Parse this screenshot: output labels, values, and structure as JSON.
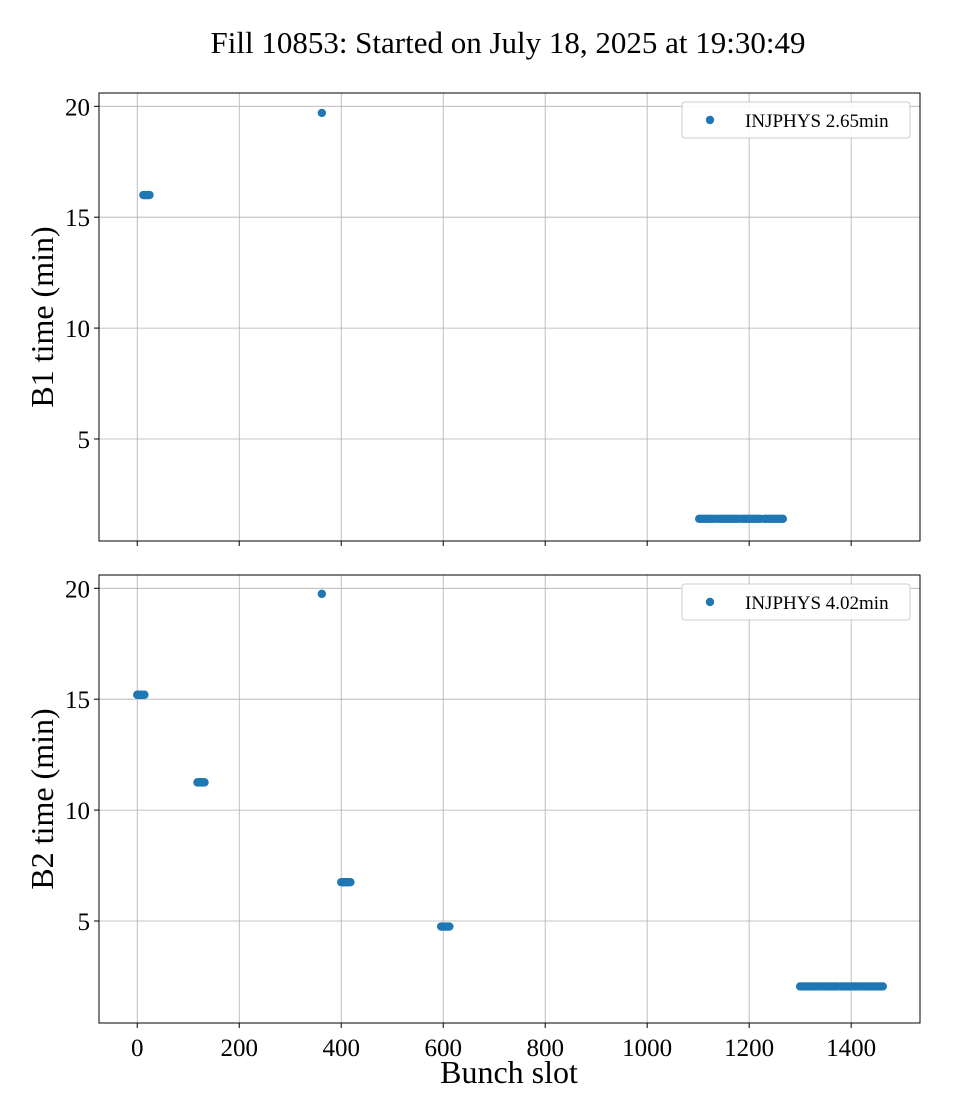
{
  "chart_data": {
    "title": "Fill 10853: Started on July 18, 2025 at 19:30:49",
    "xlabel": "Bunch slot",
    "x_ticks": [
      0,
      200,
      400,
      600,
      800,
      1000,
      1200,
      1400
    ],
    "xlim": [
      -75,
      1535
    ],
    "marker_color": "#1f77b4",
    "legend_placement": "top-right",
    "grid": true,
    "panels": [
      {
        "type": "scatter",
        "ylabel": "B1 time (min)",
        "ylim": [
          0.4,
          20.6
        ],
        "y_ticks": [
          5,
          10,
          15,
          20
        ],
        "legend": "INJPHYS 2.65min",
        "series": [
          {
            "x": [
              12,
              14,
              16,
              18,
              20,
              22,
              24
            ],
            "y": [
              16.0,
              16.0,
              16.0,
              16.0,
              16.0,
              16.0,
              16.0
            ]
          },
          {
            "x": [
              362
            ],
            "y": [
              19.7
            ]
          },
          {
            "x": [
              1102,
              1106,
              1110,
              1114,
              1118,
              1122,
              1126,
              1130,
              1134,
              1140,
              1144,
              1148,
              1152,
              1156,
              1160,
              1164,
              1168,
              1172,
              1176,
              1180,
              1186,
              1190,
              1194,
              1198,
              1202,
              1206,
              1210,
              1214,
              1218,
              1222,
              1230,
              1234,
              1238,
              1242,
              1246,
              1250,
              1254,
              1258,
              1262,
              1266
            ],
            "y": [
              1.4,
              1.4,
              1.4,
              1.4,
              1.4,
              1.4,
              1.4,
              1.4,
              1.4,
              1.4,
              1.4,
              1.4,
              1.4,
              1.4,
              1.4,
              1.4,
              1.4,
              1.4,
              1.4,
              1.4,
              1.4,
              1.4,
              1.4,
              1.4,
              1.4,
              1.4,
              1.4,
              1.4,
              1.4,
              1.4,
              1.4,
              1.4,
              1.4,
              1.4,
              1.4,
              1.4,
              1.4,
              1.4,
              1.4,
              1.4
            ]
          }
        ]
      },
      {
        "type": "scatter",
        "ylabel": "B2 time (min)",
        "ylim": [
          0.4,
          20.6
        ],
        "y_ticks": [
          5,
          10,
          15,
          20
        ],
        "legend": "INJPHYS 4.02min",
        "series": [
          {
            "x": [
              0,
              2,
              4,
              6,
              8,
              10,
              12,
              14
            ],
            "y": [
              15.2,
              15.2,
              15.2,
              15.2,
              15.2,
              15.2,
              15.2,
              15.2
            ]
          },
          {
            "x": [
              118,
              120,
              122,
              124,
              126,
              128,
              130,
              132
            ],
            "y": [
              11.25,
              11.25,
              11.25,
              11.25,
              11.25,
              11.25,
              11.25,
              11.25
            ]
          },
          {
            "x": [
              362
            ],
            "y": [
              19.75
            ]
          },
          {
            "x": [
              400,
              402,
              404,
              406,
              408,
              410,
              412,
              414,
              416,
              418
            ],
            "y": [
              6.75,
              6.75,
              6.75,
              6.75,
              6.75,
              6.75,
              6.75,
              6.75,
              6.75,
              6.75
            ]
          },
          {
            "x": [
              596,
              598,
              600,
              602,
              604,
              606,
              608,
              610,
              612
            ],
            "y": [
              4.75,
              4.75,
              4.75,
              4.75,
              4.75,
              4.75,
              4.75,
              4.75,
              4.75
            ]
          },
          {
            "x": [
              1300,
              1304,
              1308,
              1312,
              1316,
              1320,
              1324,
              1328,
              1332,
              1338,
              1342,
              1346,
              1350,
              1354,
              1358,
              1362,
              1366,
              1370,
              1374,
              1380,
              1384,
              1388,
              1392,
              1396,
              1400,
              1404,
              1408,
              1412,
              1416,
              1422,
              1426,
              1430,
              1434,
              1438,
              1442,
              1446,
              1450,
              1454,
              1458,
              1462
            ],
            "y": [
              2.05,
              2.05,
              2.05,
              2.05,
              2.05,
              2.05,
              2.05,
              2.05,
              2.05,
              2.05,
              2.05,
              2.05,
              2.05,
              2.05,
              2.05,
              2.05,
              2.05,
              2.05,
              2.05,
              2.05,
              2.05,
              2.05,
              2.05,
              2.05,
              2.05,
              2.05,
              2.05,
              2.05,
              2.05,
              2.05,
              2.05,
              2.05,
              2.05,
              2.05,
              2.05,
              2.05,
              2.05,
              2.05,
              2.05,
              2.05
            ]
          }
        ]
      }
    ]
  }
}
